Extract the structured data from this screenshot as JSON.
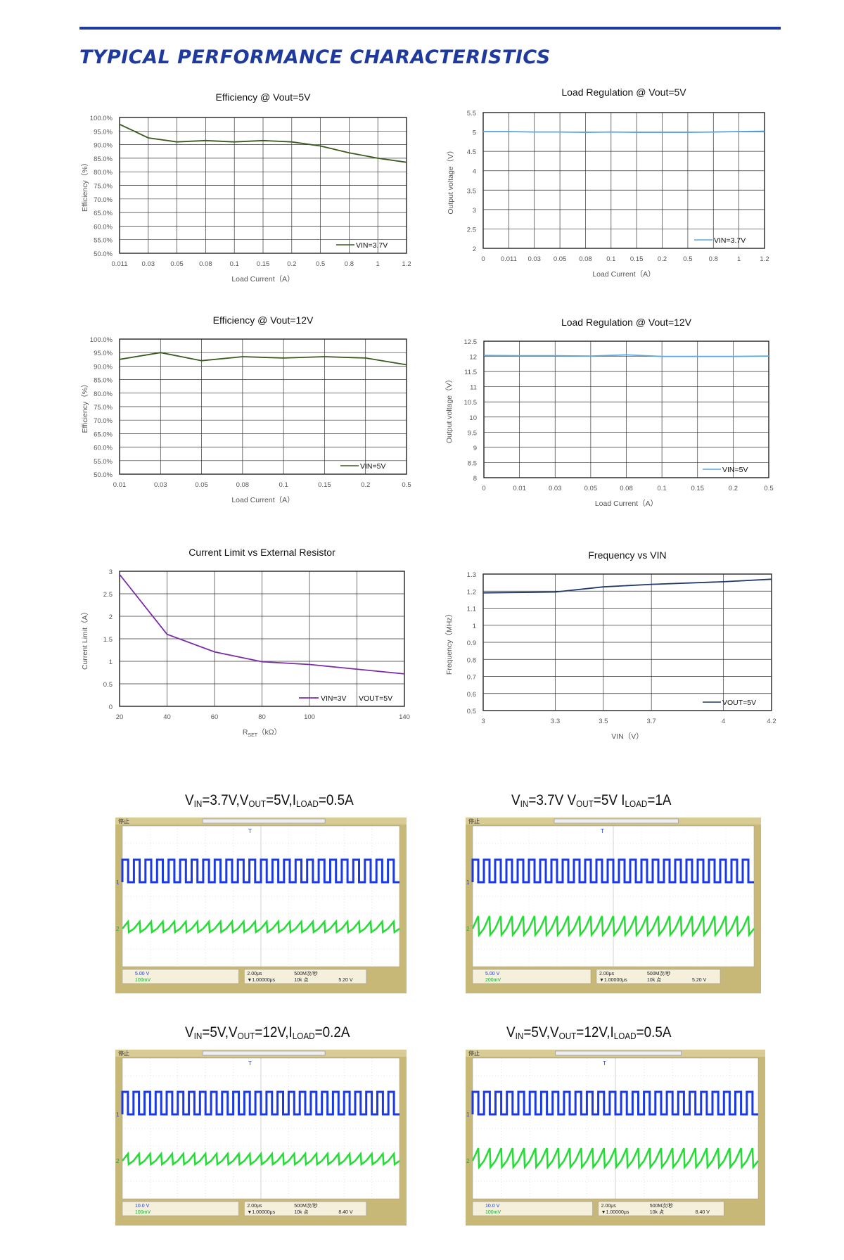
{
  "heading": "TYPICAL PERFORMANCE CHARACTERISTICS",
  "colors": {
    "heading": "#1f3a9e",
    "green_series": "#3a5a1e",
    "blue_series": "#5ba8e0",
    "purple_series": "#7a2ca8",
    "navy_series": "#1f3a6a",
    "scope_frame": "#c8b878",
    "scope_ch1": "#1a3ae8",
    "scope_ch2": "#22dd33"
  },
  "chart_data": [
    {
      "id": "eff5",
      "type": "line",
      "title": "Efficiency  @  Vout=5V",
      "xlabel": "Load Current（A）",
      "ylabel": "Efficiency（%）",
      "categories": [
        "0.011",
        "0.03",
        "0.05",
        "0.08",
        "0.1",
        "0.15",
        "0.2",
        "0.5",
        "0.8",
        "1",
        "1.2"
      ],
      "y_ticks": [
        "100.0%",
        "95.0%",
        "90.0%",
        "85.0%",
        "80.0%",
        "75.0%",
        "70.0%",
        "65.0%",
        "60.0%",
        "55.0%",
        "50.0%"
      ],
      "ylim": [
        50,
        100
      ],
      "series": [
        {
          "name": "VIN=3.7V",
          "values": [
            97.5,
            92.5,
            91,
            91.5,
            91,
            91.5,
            91,
            89.5,
            87,
            85,
            83.5
          ]
        }
      ],
      "grid": true,
      "legend": "bottom-right"
    },
    {
      "id": "reg5",
      "type": "line",
      "title": "Load Regulation @ Vout=5V",
      "xlabel": "Load Current（A）",
      "ylabel": "Output voltage（V）",
      "categories": [
        "0",
        "0.011",
        "0.03",
        "0.05",
        "0.08",
        "0.1",
        "0.15",
        "0.2",
        "0.5",
        "0.8",
        "1",
        "1.2"
      ],
      "y_ticks": [
        "5.5",
        "5",
        "4.5",
        "4",
        "3.5",
        "3",
        "2.5",
        "2"
      ],
      "ylim": [
        2,
        5.5
      ],
      "series": [
        {
          "name": "VIN=3.7V",
          "values": [
            5.01,
            5.01,
            5.0,
            5.0,
            4.99,
            5.0,
            4.99,
            4.99,
            4.99,
            5.0,
            5.01,
            5.02
          ]
        }
      ],
      "grid": true,
      "legend": "bottom-right"
    },
    {
      "id": "eff12",
      "type": "line",
      "title": "Efficiency  @  Vout=12V",
      "xlabel": "Load Current（A）",
      "ylabel": "Efficiency（%）",
      "categories": [
        "0.01",
        "0.03",
        "0.05",
        "0.08",
        "0.1",
        "0.15",
        "0.2",
        "0.5"
      ],
      "y_ticks": [
        "100.0%",
        "95.0%",
        "90.0%",
        "85.0%",
        "80.0%",
        "75.0%",
        "70.0%",
        "65.0%",
        "60.0%",
        "55.0%",
        "50.0%"
      ],
      "ylim": [
        50,
        100
      ],
      "series": [
        {
          "name": "VIN=5V",
          "values": [
            92.5,
            95,
            92,
            93.5,
            93,
            93.5,
            93,
            90.5
          ]
        }
      ],
      "grid": true,
      "legend": "bottom-right"
    },
    {
      "id": "reg12",
      "type": "line",
      "title": "Load Regulation @ Vout=12V",
      "xlabel": "Load Current（A）",
      "ylabel": "Output voltage（V）",
      "categories": [
        "0",
        "0.01",
        "0.03",
        "0.05",
        "0.08",
        "0.1",
        "0.15",
        "0.2",
        "0.5"
      ],
      "y_ticks": [
        "12.5",
        "12",
        "11.5",
        "11",
        "10.5",
        "10",
        "9.5",
        "9",
        "8.5",
        "8"
      ],
      "ylim": [
        8,
        12.5
      ],
      "series": [
        {
          "name": "VIN=5V",
          "values": [
            12.03,
            12.02,
            12.02,
            12.01,
            12.05,
            12.0,
            12.0,
            12.0,
            12.01
          ]
        }
      ],
      "grid": true,
      "legend": "bottom-right"
    },
    {
      "id": "ilim",
      "type": "line",
      "title": "Current Limit vs External Resistor",
      "xlabel": "kΩ",
      "xlabel_var": "R",
      "xlabel_sub": "SET",
      "ylabel": "Current Limit（A）",
      "x_ticks": [
        "20",
        "40",
        "60",
        "80",
        "100",
        "140"
      ],
      "y_ticks": [
        "3",
        "2.5",
        "2",
        "1.5",
        "1",
        "0.5",
        "0"
      ],
      "ylim": [
        0,
        3
      ],
      "series": [
        {
          "name": "VIN=3V",
          "values": [
            2.93,
            1.6,
            1.21,
            0.99,
            0.93,
            0.72
          ]
        }
      ],
      "legend_extra": "VOUT=5V",
      "grid": true,
      "legend": "bottom-right"
    },
    {
      "id": "freq",
      "type": "line",
      "title": "Frequency vs VIN",
      "xlabel": "VIN（V）",
      "ylabel": "Frequency（MHz）",
      "x_ticks": [
        "3",
        "3.3",
        "3.5",
        "3.7",
        "4",
        "4.2"
      ],
      "y_ticks": [
        "1.3",
        "1.2",
        "1.1",
        "1",
        "0.9",
        "0.8",
        "0.7",
        "0.6",
        "0.5"
      ],
      "ylim": [
        0.5,
        1.3
      ],
      "series": [
        {
          "name": "VOUT=5V",
          "values": [
            1.19,
            1.195,
            1.225,
            1.24,
            1.255,
            1.27
          ]
        }
      ],
      "grid": true,
      "legend": "bottom-right"
    }
  ],
  "waveforms": [
    {
      "id": "w1",
      "title_parts": [
        "V",
        "IN",
        "=3.7V,V",
        "OUT",
        "=5V,I",
        "LOAD",
        "=0.5A"
      ],
      "ch1_scale": "5.00 V",
      "ch2_scale": "100mV",
      "time": "2.00μs",
      "delay": "▼1.00000μs",
      "rate": "500M次/秒",
      "points": "10k 点",
      "trig": "5.20 V",
      "status": "停止"
    },
    {
      "id": "w2",
      "title_parts": [
        "V",
        "IN",
        "=3.7V V",
        "OUT",
        "=5V I",
        "LOAD",
        "=1A"
      ],
      "ch1_scale": "5.00 V",
      "ch2_scale": "200mV",
      "time": "2.00μs",
      "delay": "▼1.00000μs",
      "rate": "500M次/秒",
      "points": "10k 点",
      "trig": "5.20 V",
      "status": "停止"
    },
    {
      "id": "w3",
      "title_parts": [
        "V",
        "IN",
        "=5V,V",
        "OUT",
        "=12V,I",
        "LOAD",
        "=0.2A"
      ],
      "ch1_scale": "10.0 V",
      "ch2_scale": "100mV",
      "time": "2.00μs",
      "delay": "▼1.00000μs",
      "rate": "500M次/秒",
      "points": "10k 点",
      "trig": "8.40 V",
      "status": "停止"
    },
    {
      "id": "w4",
      "title_parts": [
        "V",
        "IN",
        "=5V,V",
        "OUT",
        "=12V,I",
        "LOAD",
        "=0.5A"
      ],
      "ch1_scale": "10.0 V",
      "ch2_scale": "100mV",
      "time": "2.00μs",
      "delay": "▼1.00000μs",
      "rate": "500M次/秒",
      "points": "10k 点",
      "trig": "8.40 V",
      "status": "停止"
    }
  ]
}
